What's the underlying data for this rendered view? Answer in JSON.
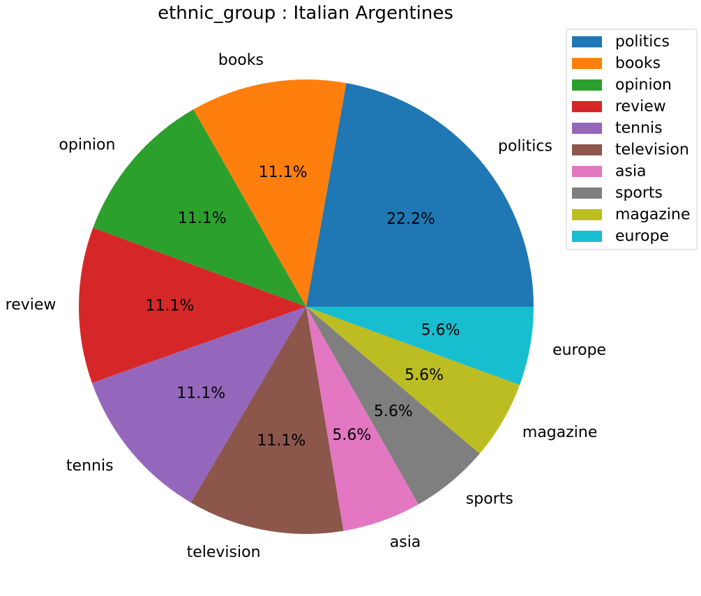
{
  "chart_data": {
    "type": "pie",
    "title": "ethnic_group : Italian Argentines",
    "categories": [
      "politics",
      "books",
      "opinion",
      "review",
      "tennis",
      "television",
      "asia",
      "sports",
      "magazine",
      "europe"
    ],
    "values": [
      22.2,
      11.1,
      11.1,
      11.1,
      11.1,
      11.1,
      5.6,
      5.6,
      5.6,
      5.6
    ],
    "percent_labels": [
      "22.2%",
      "11.1%",
      "11.1%",
      "11.1%",
      "11.1%",
      "11.1%",
      "5.6%",
      "5.6%",
      "5.6%",
      "5.6%"
    ],
    "colors": [
      "#1f77b4",
      "#ff7f0e",
      "#2ca02c",
      "#d62728",
      "#9467bd",
      "#8c564b",
      "#e377c2",
      "#7f7f7f",
      "#bcbd22",
      "#17becf"
    ],
    "start_angle_deg": 0,
    "direction": "counterclockwise",
    "legend": {
      "placement": "top-right",
      "entries": [
        "politics",
        "books",
        "opinion",
        "review",
        "tennis",
        "television",
        "asia",
        "sports",
        "magazine",
        "europe"
      ]
    }
  }
}
